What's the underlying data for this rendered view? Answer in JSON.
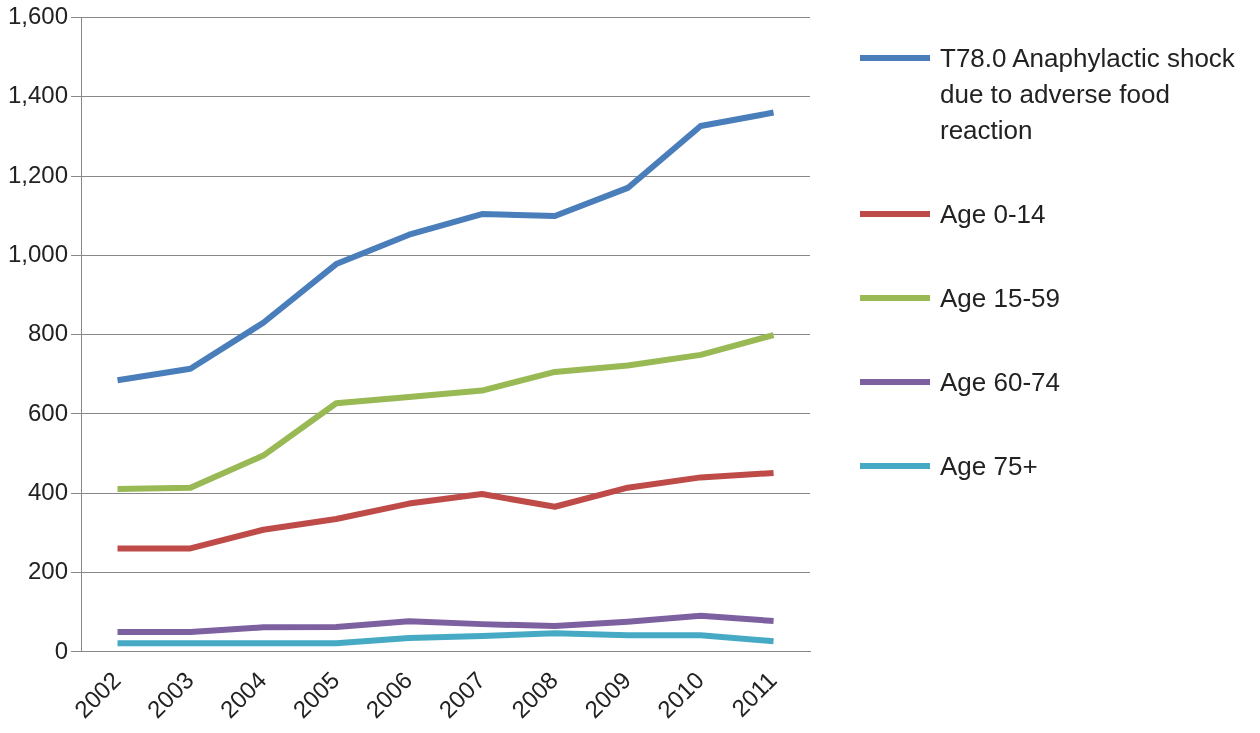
{
  "chart_data": {
    "type": "line",
    "categories": [
      "2002",
      "2003",
      "2004",
      "2005",
      "2006",
      "2007",
      "2008",
      "2009",
      "2010",
      "2011"
    ],
    "series": [
      {
        "name": "T78.0 Anaphylactic shock due to adverse food reaction",
        "color": "#4a7ebb",
        "values": [
          685,
          714,
          830,
          978,
          1052,
          1104,
          1099,
          1170,
          1326,
          1360
        ]
      },
      {
        "name": "Age 0-14",
        "color": "#be4b48",
        "values": [
          261,
          261,
          308,
          335,
          374,
          398,
          366,
          414,
          440,
          451
        ]
      },
      {
        "name": "Age 15-59",
        "color": "#98b954",
        "values": [
          411,
          414,
          495,
          627,
          643,
          659,
          706,
          722,
          749,
          799
        ]
      },
      {
        "name": "Age 60-74",
        "color": "#7d60a0",
        "values": [
          50,
          50,
          62,
          63,
          77,
          70,
          65,
          76,
          91,
          78
        ]
      },
      {
        "name": "Age 75+",
        "color": "#46aac5",
        "values": [
          22,
          22,
          22,
          22,
          35,
          40,
          47,
          42,
          42,
          27
        ]
      }
    ],
    "ylim": [
      0,
      1600
    ],
    "yticks": [
      0,
      200,
      400,
      600,
      800,
      {
        "value": 1000,
        "label": "1,000"
      },
      {
        "value": 1200,
        "label": "1,200"
      },
      {
        "value": 1400,
        "label": "1,400"
      },
      {
        "value": 1600,
        "label": "1,600"
      }
    ],
    "grid": "y",
    "legend": "right",
    "marker": "none",
    "line_style": "solid"
  }
}
